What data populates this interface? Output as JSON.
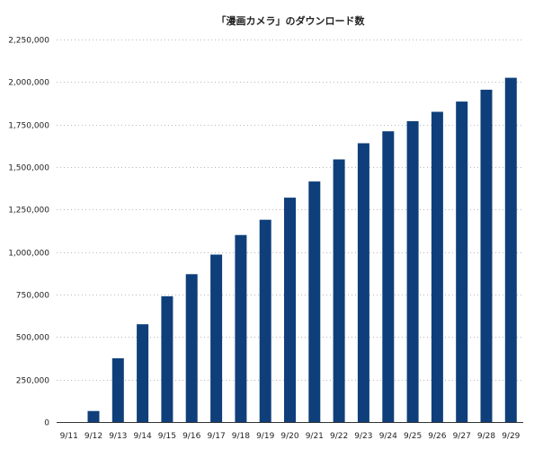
{
  "chart_data": {
    "type": "bar",
    "title": "「漫画カメラ」のダウンロード数",
    "xlabel": "",
    "ylabel": "",
    "categories": [
      "9/11",
      "9/12",
      "9/13",
      "9/14",
      "9/15",
      "9/16",
      "9/17",
      "9/18",
      "9/19",
      "9/20",
      "9/21",
      "9/22",
      "9/23",
      "9/24",
      "9/25",
      "9/26",
      "9/27",
      "9/28",
      "9/29"
    ],
    "values": [
      0,
      65000,
      375000,
      575000,
      740000,
      870000,
      985000,
      1100000,
      1190000,
      1320000,
      1415000,
      1545000,
      1640000,
      1710000,
      1770000,
      1825000,
      1885000,
      1955000,
      2025000
    ],
    "yticks": [
      "0",
      "250,000",
      "500,000",
      "750,000",
      "1,000,000",
      "1,250,000",
      "1,500,000",
      "1,750,000",
      "2,000,000",
      "2,250,000"
    ],
    "ylim": [
      0,
      2250000
    ],
    "grid": true,
    "legend": "none",
    "bar_color": "#0f3f7a"
  }
}
